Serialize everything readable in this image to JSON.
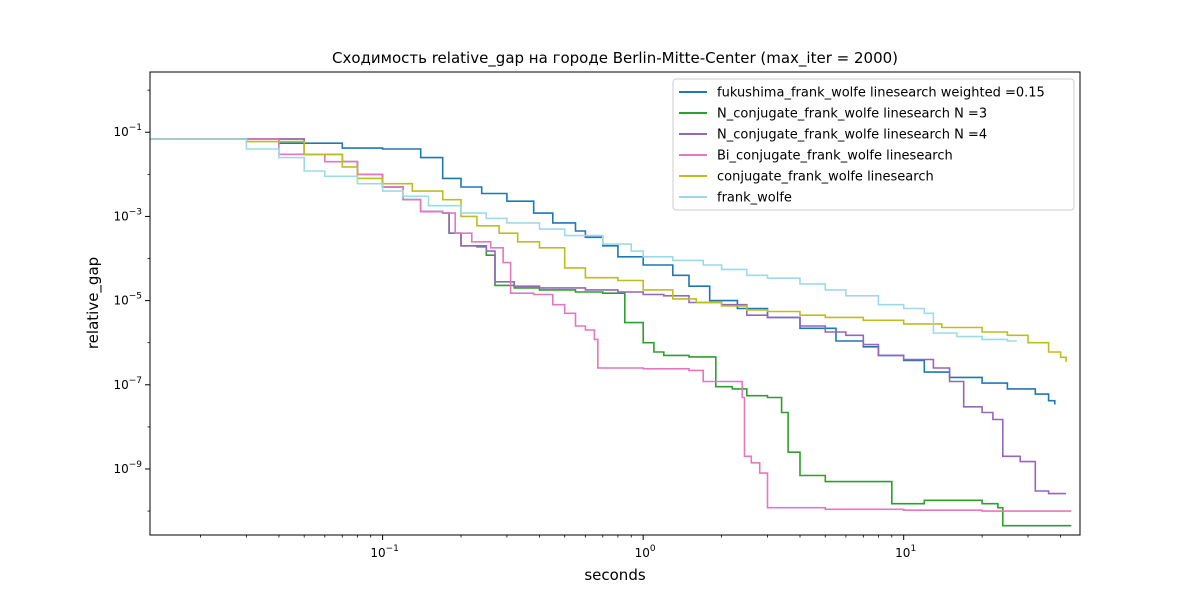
{
  "chart_data": {
    "type": "line",
    "title": "Сходимость relative_gap на городе Berlin-Mitte-Center  (max_iter = 2000)",
    "xlabel": "seconds",
    "ylabel": "relative_gap",
    "xscale": "log",
    "yscale": "log",
    "xlim": [
      0.0128,
      47.5
    ],
    "ylim": [
      2.7e-11,
      2.7
    ],
    "xticks": [
      {
        "value": 0.1,
        "label": "10",
        "exp": "−1"
      },
      {
        "value": 1,
        "label": "10",
        "exp": "0"
      },
      {
        "value": 10,
        "label": "10",
        "exp": "1"
      }
    ],
    "yticks": [
      {
        "value": 0.1,
        "label": "10",
        "exp": "−1"
      },
      {
        "value": 0.001,
        "label": "10",
        "exp": "−3"
      },
      {
        "value": 1e-05,
        "label": "10",
        "exp": "−5"
      },
      {
        "value": 1e-07,
        "label": "10",
        "exp": "−7"
      },
      {
        "value": 1e-09,
        "label": "10",
        "exp": "−9"
      }
    ],
    "grid": false,
    "legend_position": "top-right",
    "series": [
      {
        "name": "fukushima_frank_wolfe linesearch weighted =0.15",
        "color": "#1f77b4",
        "points": [
          [
            0.0128,
            0.069
          ],
          [
            0.028,
            0.069
          ],
          [
            0.04,
            0.055
          ],
          [
            0.07,
            0.042
          ],
          [
            0.1,
            0.04
          ],
          [
            0.14,
            0.025
          ],
          [
            0.17,
            0.008
          ],
          [
            0.2,
            0.005
          ],
          [
            0.24,
            0.0035
          ],
          [
            0.3,
            0.0023
          ],
          [
            0.38,
            0.0012
          ],
          [
            0.45,
            0.0007
          ],
          [
            0.55,
            0.00045
          ],
          [
            0.6,
            0.00032
          ],
          [
            0.7,
            0.0002
          ],
          [
            0.8,
            0.00011
          ],
          [
            1.0,
            7e-05
          ],
          [
            1.3,
            4e-05
          ],
          [
            1.5,
            2.2e-05
          ],
          [
            1.8,
            1e-05
          ],
          [
            2.3,
            6.5e-06
          ],
          [
            3.0,
            4e-06
          ],
          [
            4.0,
            2.2e-06
          ],
          [
            5.5,
            1.1e-06
          ],
          [
            7.0,
            8e-07
          ],
          [
            8.0,
            5e-07
          ],
          [
            10.0,
            3.8e-07
          ],
          [
            12.0,
            2e-07
          ],
          [
            15.0,
            1.5e-07
          ],
          [
            20.0,
            1.1e-07
          ],
          [
            25.0,
            8e-08
          ],
          [
            32.0,
            6e-08
          ],
          [
            36.0,
            4.2e-08
          ],
          [
            38.0,
            3.4e-08
          ]
        ]
      },
      {
        "name": "N_conjugate_frank_wolfe linesearch N =3",
        "color": "#2ca02c",
        "points": [
          [
            0.0128,
            0.069
          ],
          [
            0.03,
            0.069
          ],
          [
            0.05,
            0.03
          ],
          [
            0.07,
            0.02
          ],
          [
            0.08,
            0.01
          ],
          [
            0.1,
            0.005
          ],
          [
            0.12,
            0.0025
          ],
          [
            0.14,
            0.0013
          ],
          [
            0.17,
            0.0012
          ],
          [
            0.18,
            0.0004
          ],
          [
            0.2,
            0.0002
          ],
          [
            0.23,
            0.00019
          ],
          [
            0.25,
            0.00012
          ],
          [
            0.27,
            2.3e-05
          ],
          [
            0.32,
            2e-05
          ],
          [
            0.4,
            1.8e-05
          ],
          [
            0.55,
            1.6e-05
          ],
          [
            0.7,
            1.5e-05
          ],
          [
            0.8,
            1.5e-05
          ],
          [
            0.85,
            3e-06
          ],
          [
            1.0,
            1e-06
          ],
          [
            1.1,
            6e-07
          ],
          [
            1.2,
            5e-07
          ],
          [
            1.5,
            4.6e-07
          ],
          [
            1.8,
            4.6e-07
          ],
          [
            1.9,
            9e-08
          ],
          [
            2.2,
            8e-08
          ],
          [
            2.5,
            5.5e-08
          ],
          [
            3.0,
            5e-08
          ],
          [
            3.4,
            2.2e-08
          ],
          [
            3.6,
            2.5e-09
          ],
          [
            4.0,
            7e-10
          ],
          [
            5.0,
            5e-10
          ],
          [
            8.0,
            5e-10
          ],
          [
            9.0,
            1.5e-10
          ],
          [
            12.0,
            1.8e-10
          ],
          [
            20.0,
            1.5e-10
          ],
          [
            23.0,
            1.2e-10
          ],
          [
            24.0,
            4.5e-11
          ],
          [
            44.0,
            4.5e-11
          ]
        ]
      },
      {
        "name": "N_conjugate_frank_wolfe linesearch N =4",
        "color": "#9467bd",
        "points": [
          [
            0.0128,
            0.069
          ],
          [
            0.03,
            0.069
          ],
          [
            0.05,
            0.03
          ],
          [
            0.07,
            0.02
          ],
          [
            0.08,
            0.01
          ],
          [
            0.1,
            0.005
          ],
          [
            0.12,
            0.0025
          ],
          [
            0.14,
            0.0013
          ],
          [
            0.17,
            0.0012
          ],
          [
            0.18,
            0.0004
          ],
          [
            0.2,
            0.0002
          ],
          [
            0.25,
            0.00015
          ],
          [
            0.27,
            2.8e-05
          ],
          [
            0.32,
            2.2e-05
          ],
          [
            0.4,
            2e-05
          ],
          [
            0.6,
            1.8e-05
          ],
          [
            0.8,
            1.6e-05
          ],
          [
            1.0,
            1.4e-05
          ],
          [
            1.2,
            1.3e-05
          ],
          [
            1.5,
            9e-06
          ],
          [
            2.0,
            8e-06
          ],
          [
            2.5,
            4.5e-06
          ],
          [
            3.0,
            4e-06
          ],
          [
            4.0,
            2.5e-06
          ],
          [
            5.0,
            1.8e-06
          ],
          [
            6.0,
            1.5e-06
          ],
          [
            7.0,
            9e-07
          ],
          [
            8.0,
            5e-07
          ],
          [
            10.0,
            4e-07
          ],
          [
            13.0,
            2.5e-07
          ],
          [
            15.0,
            1.2e-07
          ],
          [
            17.0,
            3e-08
          ],
          [
            20.0,
            2.2e-08
          ],
          [
            22.0,
            1.5e-08
          ],
          [
            24.0,
            2e-09
          ],
          [
            28.0,
            1.5e-09
          ],
          [
            32.0,
            3e-10
          ],
          [
            36.0,
            2.6e-10
          ],
          [
            42.0,
            2.6e-10
          ]
        ]
      },
      {
        "name": "Bi_conjugate_frank_wolfe linesearch",
        "color": "#e377c2",
        "points": [
          [
            0.0128,
            0.069
          ],
          [
            0.025,
            0.069
          ],
          [
            0.04,
            0.03
          ],
          [
            0.06,
            0.02
          ],
          [
            0.08,
            0.01
          ],
          [
            0.1,
            0.005
          ],
          [
            0.12,
            0.0025
          ],
          [
            0.14,
            0.0013
          ],
          [
            0.17,
            0.0012
          ],
          [
            0.19,
            0.0004
          ],
          [
            0.22,
            0.00025
          ],
          [
            0.26,
            0.00018
          ],
          [
            0.29,
            8e-05
          ],
          [
            0.31,
            1.5e-05
          ],
          [
            0.38,
            1.4e-05
          ],
          [
            0.42,
            1.4e-05
          ],
          [
            0.45,
            8e-06
          ],
          [
            0.5,
            5e-06
          ],
          [
            0.55,
            2.5e-06
          ],
          [
            0.6,
            2e-06
          ],
          [
            0.65,
            1.2e-06
          ],
          [
            0.67,
            2.5e-07
          ],
          [
            1.0,
            2.4e-07
          ],
          [
            1.5,
            2.2e-07
          ],
          [
            1.7,
            1.2e-07
          ],
          [
            2.2,
            1.2e-07
          ],
          [
            2.4,
            5e-08
          ],
          [
            2.45,
            2e-09
          ],
          [
            2.6,
            1.4e-09
          ],
          [
            2.8,
            8e-10
          ],
          [
            3.0,
            1.2e-10
          ],
          [
            5.0,
            1.1e-10
          ],
          [
            10.0,
            1.05e-10
          ],
          [
            20.0,
            1e-10
          ],
          [
            44.0,
            1e-10
          ]
        ]
      },
      {
        "name": "conjugate_frank_wolfe linesearch",
        "color": "#bcbd22",
        "points": [
          [
            0.0128,
            0.069
          ],
          [
            0.03,
            0.06
          ],
          [
            0.05,
            0.03
          ],
          [
            0.07,
            0.015
          ],
          [
            0.08,
            0.008
          ],
          [
            0.1,
            0.006
          ],
          [
            0.13,
            0.004
          ],
          [
            0.17,
            0.0025
          ],
          [
            0.2,
            0.001
          ],
          [
            0.23,
            0.0006
          ],
          [
            0.28,
            0.0004
          ],
          [
            0.33,
            0.00025
          ],
          [
            0.4,
            0.00018
          ],
          [
            0.5,
            6e-05
          ],
          [
            0.6,
            3.5e-05
          ],
          [
            0.8,
            3e-05
          ],
          [
            1.0,
            1.8e-05
          ],
          [
            1.3,
            1.1e-05
          ],
          [
            1.6,
            9e-06
          ],
          [
            2.0,
            7.5e-06
          ],
          [
            2.5,
            6e-06
          ],
          [
            3.0,
            5.5e-06
          ],
          [
            4.0,
            4.5e-06
          ],
          [
            5.0,
            4e-06
          ],
          [
            7.0,
            3.4e-06
          ],
          [
            10.0,
            2.8e-06
          ],
          [
            14.0,
            2.3e-06
          ],
          [
            20.0,
            1.8e-06
          ],
          [
            25.0,
            1.5e-06
          ],
          [
            30.0,
            1e-06
          ],
          [
            36.0,
            6e-07
          ],
          [
            40.0,
            4.5e-07
          ],
          [
            42.0,
            3.5e-07
          ]
        ]
      },
      {
        "name": "frank_wolfe",
        "color": "#9edae5",
        "points": [
          [
            0.0128,
            0.069
          ],
          [
            0.02,
            0.069
          ],
          [
            0.03,
            0.04
          ],
          [
            0.04,
            0.025
          ],
          [
            0.05,
            0.012
          ],
          [
            0.06,
            0.009
          ],
          [
            0.08,
            0.006
          ],
          [
            0.1,
            0.004
          ],
          [
            0.12,
            0.003
          ],
          [
            0.15,
            0.0018
          ],
          [
            0.2,
            0.0012
          ],
          [
            0.25,
            0.0009
          ],
          [
            0.3,
            0.0007
          ],
          [
            0.4,
            0.0005
          ],
          [
            0.5,
            0.00035
          ],
          [
            0.7,
            0.00022
          ],
          [
            0.9,
            0.00015
          ],
          [
            1.0,
            0.00011
          ],
          [
            1.3,
            9e-05
          ],
          [
            1.7,
            7e-05
          ],
          [
            2.0,
            5.5e-05
          ],
          [
            2.5,
            4e-05
          ],
          [
            3.0,
            3.4e-05
          ],
          [
            4.0,
            2.5e-05
          ],
          [
            5.0,
            1.8e-05
          ],
          [
            6.0,
            1.3e-05
          ],
          [
            8.0,
            8e-06
          ],
          [
            10.0,
            6.5e-06
          ],
          [
            12.0,
            5e-06
          ],
          [
            13.0,
            1.7e-06
          ],
          [
            16.0,
            1.4e-06
          ],
          [
            20.0,
            1.2e-06
          ],
          [
            25.0,
            1.1e-06
          ],
          [
            27.0,
            1.05e-06
          ]
        ]
      }
    ]
  }
}
